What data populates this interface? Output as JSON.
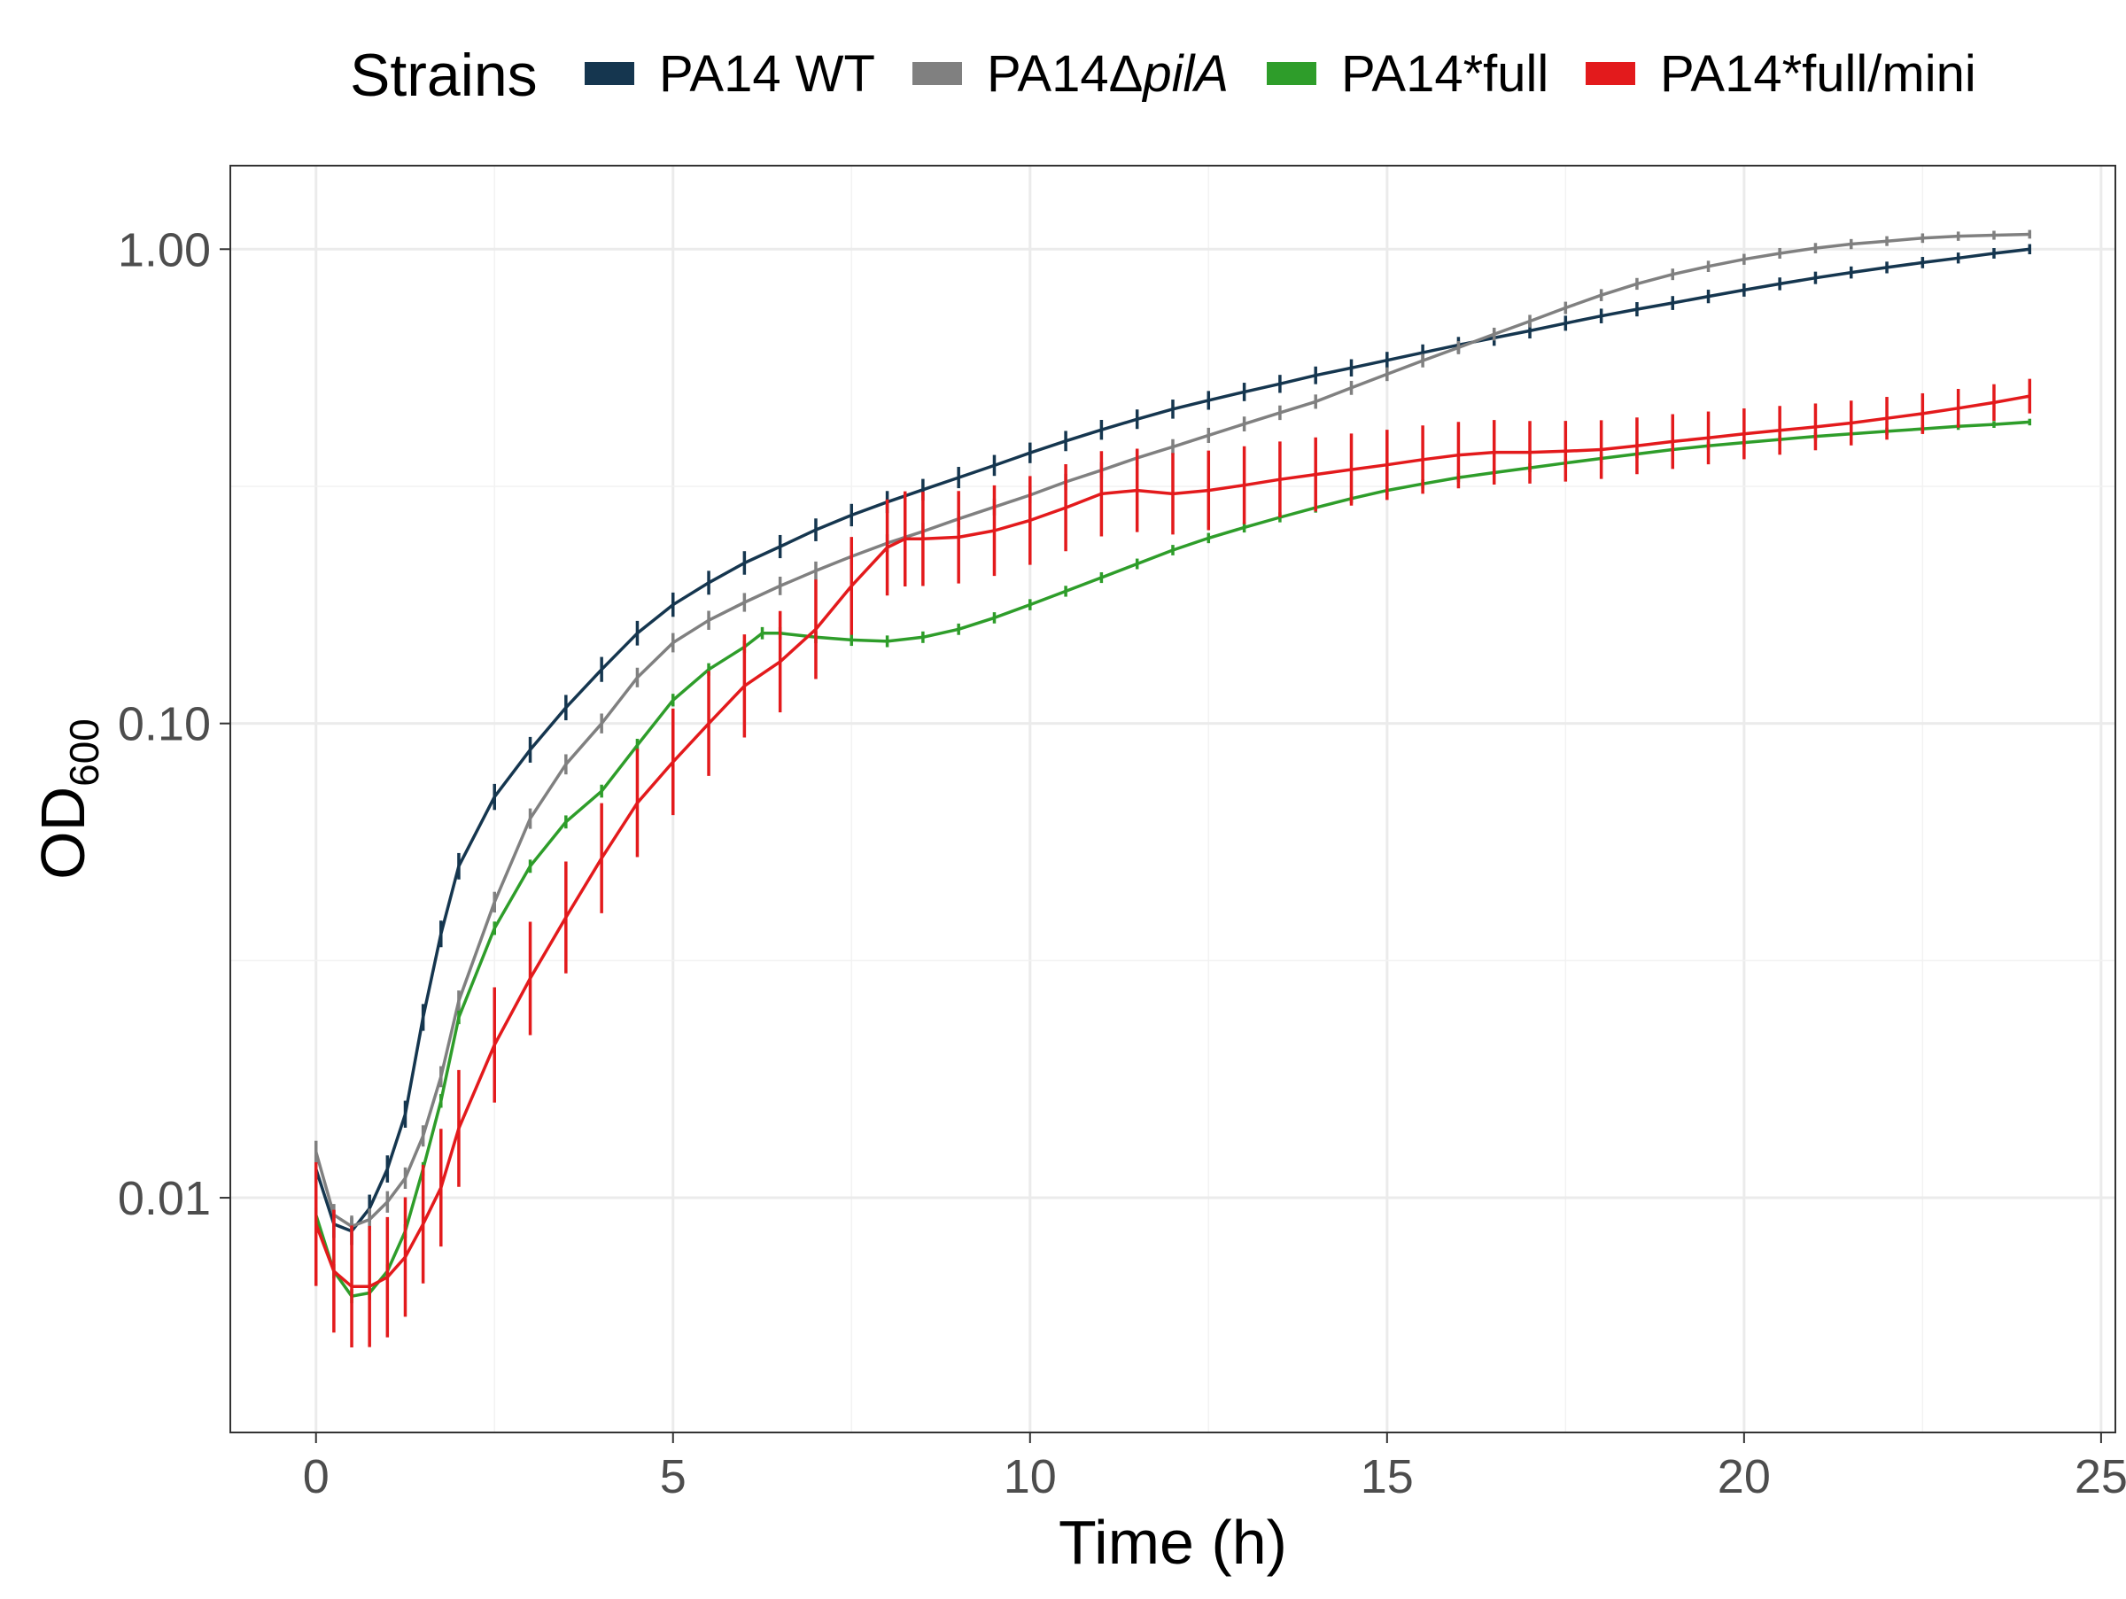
{
  "chart_data": {
    "type": "line",
    "xlabel": "Time (h)",
    "ylabel": {
      "main": "OD",
      "sub": "600"
    },
    "x_ticks": [
      0,
      5,
      10,
      15,
      20,
      25
    ],
    "y_ticks": [
      {
        "value": 0.01,
        "label": "0.01"
      },
      {
        "value": 0.1,
        "label": "0.10"
      },
      {
        "value": 1.0,
        "label": "1.00"
      }
    ],
    "xlim": [
      -1.2,
      25.2
    ],
    "ylim": [
      0.0032,
      1.5
    ],
    "y_scale": "log",
    "grid": true,
    "legend": {
      "title": "Strains",
      "position": "top",
      "items": [
        {
          "prefix": "PA14 WT",
          "italic": "",
          "color": "#15364f"
        },
        {
          "prefix": "PA14Δ",
          "italic": "pilA",
          "color": "#808080"
        },
        {
          "prefix": "PA14*full",
          "italic": "",
          "color": "#2e9d2a"
        },
        {
          "prefix": "PA14*full/mini",
          "italic": "",
          "color": "#e31a1c"
        }
      ]
    },
    "series": [
      {
        "name": "PA14 WT",
        "color": "#15364f",
        "points": [
          [
            0,
            0.0115
          ],
          [
            0.25,
            0.0088
          ],
          [
            0.5,
            0.0085
          ],
          [
            0.75,
            0.0095
          ],
          [
            1,
            0.0115
          ],
          [
            1.25,
            0.015
          ],
          [
            1.5,
            0.024
          ],
          [
            1.75,
            0.036
          ],
          [
            2,
            0.05
          ],
          [
            2.5,
            0.07
          ],
          [
            3,
            0.088
          ],
          [
            3.5,
            0.108
          ],
          [
            4,
            0.13
          ],
          [
            4.5,
            0.155
          ],
          [
            5,
            0.178
          ],
          [
            5.5,
            0.198
          ],
          [
            6,
            0.218
          ],
          [
            6.5,
            0.236
          ],
          [
            7,
            0.256
          ],
          [
            7.5,
            0.275
          ],
          [
            8,
            0.293
          ],
          [
            8.5,
            0.311
          ],
          [
            9,
            0.33
          ],
          [
            9.5,
            0.35
          ],
          [
            10,
            0.372
          ],
          [
            10.5,
            0.394
          ],
          [
            11,
            0.416
          ],
          [
            11.5,
            0.438
          ],
          [
            12,
            0.46
          ],
          [
            12.5,
            0.48
          ],
          [
            13,
            0.5
          ],
          [
            13.5,
            0.52
          ],
          [
            14,
            0.542
          ],
          [
            14.5,
            0.562
          ],
          [
            15,
            0.583
          ],
          [
            15.5,
            0.605
          ],
          [
            16,
            0.628
          ],
          [
            16.5,
            0.65
          ],
          [
            17,
            0.673
          ],
          [
            17.5,
            0.698
          ],
          [
            18,
            0.723
          ],
          [
            18.5,
            0.747
          ],
          [
            19,
            0.77
          ],
          [
            19.5,
            0.795
          ],
          [
            20,
            0.82
          ],
          [
            20.5,
            0.845
          ],
          [
            21,
            0.87
          ],
          [
            21.5,
            0.893
          ],
          [
            22,
            0.915
          ],
          [
            22.5,
            0.937
          ],
          [
            23,
            0.958
          ],
          [
            23.5,
            0.98
          ],
          [
            24,
            1.0
          ]
        ],
        "err": 0.06
      },
      {
        "name": "PA14ΔpilA",
        "color": "#808080",
        "points": [
          [
            0,
            0.0125
          ],
          [
            0.25,
            0.0092
          ],
          [
            0.5,
            0.0087
          ],
          [
            0.75,
            0.009
          ],
          [
            1,
            0.0098
          ],
          [
            1.25,
            0.011
          ],
          [
            1.5,
            0.0135
          ],
          [
            1.75,
            0.018
          ],
          [
            2,
            0.026
          ],
          [
            2.5,
            0.042
          ],
          [
            3,
            0.063
          ],
          [
            3.5,
            0.082
          ],
          [
            4,
            0.1
          ],
          [
            4.5,
            0.125
          ],
          [
            5,
            0.148
          ],
          [
            5.5,
            0.165
          ],
          [
            6,
            0.18
          ],
          [
            6.5,
            0.195
          ],
          [
            7,
            0.21
          ],
          [
            7.5,
            0.225
          ],
          [
            8,
            0.24
          ],
          [
            8.5,
            0.254
          ],
          [
            9,
            0.27
          ],
          [
            9.5,
            0.286
          ],
          [
            10,
            0.303
          ],
          [
            10.5,
            0.323
          ],
          [
            11,
            0.342
          ],
          [
            11.5,
            0.363
          ],
          [
            12,
            0.383
          ],
          [
            12.5,
            0.405
          ],
          [
            13,
            0.428
          ],
          [
            13.5,
            0.452
          ],
          [
            14,
            0.477
          ],
          [
            14.5,
            0.51
          ],
          [
            15,
            0.545
          ],
          [
            15.5,
            0.582
          ],
          [
            16,
            0.62
          ],
          [
            16.5,
            0.662
          ],
          [
            17,
            0.705
          ],
          [
            17.5,
            0.752
          ],
          [
            18,
            0.8
          ],
          [
            18.5,
            0.845
          ],
          [
            19,
            0.885
          ],
          [
            19.5,
            0.92
          ],
          [
            20,
            0.952
          ],
          [
            20.5,
            0.98
          ],
          [
            21,
            1.005
          ],
          [
            21.5,
            1.025
          ],
          [
            22,
            1.04
          ],
          [
            22.5,
            1.055
          ],
          [
            23,
            1.065
          ],
          [
            23.5,
            1.07
          ],
          [
            24,
            1.075
          ]
        ],
        "err": 0.045
      },
      {
        "name": "PA14*full",
        "color": "#2e9d2a",
        "points": [
          [
            0,
            0.0092
          ],
          [
            0.25,
            0.007
          ],
          [
            0.5,
            0.0062
          ],
          [
            0.75,
            0.0063
          ],
          [
            1,
            0.007
          ],
          [
            1.25,
            0.0085
          ],
          [
            1.5,
            0.0115
          ],
          [
            1.75,
            0.016
          ],
          [
            2,
            0.024
          ],
          [
            2.5,
            0.037
          ],
          [
            3,
            0.05
          ],
          [
            3.5,
            0.062
          ],
          [
            4,
            0.072
          ],
          [
            4.5,
            0.09
          ],
          [
            5,
            0.112
          ],
          [
            5.5,
            0.13
          ],
          [
            6,
            0.145
          ],
          [
            6.25,
            0.155
          ],
          [
            6.5,
            0.155
          ],
          [
            7,
            0.152
          ],
          [
            7.5,
            0.15
          ],
          [
            8,
            0.149
          ],
          [
            8.5,
            0.152
          ],
          [
            9,
            0.158
          ],
          [
            9.5,
            0.167
          ],
          [
            10,
            0.178
          ],
          [
            10.5,
            0.19
          ],
          [
            11,
            0.203
          ],
          [
            11.5,
            0.217
          ],
          [
            12,
            0.232
          ],
          [
            12.5,
            0.246
          ],
          [
            13,
            0.259
          ],
          [
            13.5,
            0.272
          ],
          [
            14,
            0.285
          ],
          [
            14.5,
            0.298
          ],
          [
            15,
            0.31
          ],
          [
            15.5,
            0.32
          ],
          [
            16,
            0.33
          ],
          [
            16.5,
            0.338
          ],
          [
            17,
            0.346
          ],
          [
            17.5,
            0.354
          ],
          [
            18,
            0.362
          ],
          [
            18.5,
            0.37
          ],
          [
            19,
            0.378
          ],
          [
            19.5,
            0.385
          ],
          [
            20,
            0.391
          ],
          [
            20.5,
            0.397
          ],
          [
            21,
            0.403
          ],
          [
            21.5,
            0.408
          ],
          [
            22,
            0.413
          ],
          [
            22.5,
            0.418
          ],
          [
            23,
            0.423
          ],
          [
            23.5,
            0.427
          ],
          [
            24,
            0.432
          ]
        ],
        "err": 0.025
      },
      {
        "name": "PA14*full/mini",
        "color": "#e31a1c",
        "points": [
          [
            0,
            0.0088
          ],
          [
            0.25,
            0.007
          ],
          [
            0.5,
            0.0065
          ],
          [
            0.75,
            0.0065
          ],
          [
            1,
            0.0068
          ],
          [
            1.25,
            0.0075
          ],
          [
            1.5,
            0.0088
          ],
          [
            1.75,
            0.0105
          ],
          [
            2,
            0.014
          ],
          [
            2.5,
            0.021
          ],
          [
            3,
            0.029
          ],
          [
            3.5,
            0.039
          ],
          [
            4,
            0.052
          ],
          [
            4.5,
            0.068
          ],
          [
            5,
            0.083
          ],
          [
            5.5,
            0.1
          ],
          [
            6,
            0.12
          ],
          [
            6.5,
            0.135
          ],
          [
            7,
            0.158
          ],
          [
            7.5,
            0.195
          ],
          [
            8,
            0.235
          ],
          [
            8.25,
            0.245
          ],
          [
            8.5,
            0.245
          ],
          [
            9,
            0.247
          ],
          [
            9.5,
            0.255
          ],
          [
            10,
            0.268
          ],
          [
            10.5,
            0.285
          ],
          [
            11,
            0.305
          ],
          [
            11.5,
            0.31
          ],
          [
            12,
            0.305
          ],
          [
            12.5,
            0.31
          ],
          [
            13,
            0.318
          ],
          [
            13.5,
            0.327
          ],
          [
            14,
            0.335
          ],
          [
            14.5,
            0.343
          ],
          [
            15,
            0.351
          ],
          [
            15.5,
            0.36
          ],
          [
            16,
            0.368
          ],
          [
            16.5,
            0.373
          ],
          [
            17,
            0.373
          ],
          [
            17.5,
            0.375
          ],
          [
            18,
            0.378
          ],
          [
            18.5,
            0.385
          ],
          [
            19,
            0.393
          ],
          [
            19.5,
            0.4
          ],
          [
            20,
            0.408
          ],
          [
            20.5,
            0.415
          ],
          [
            21,
            0.422
          ],
          [
            21.5,
            0.43
          ],
          [
            22,
            0.44
          ],
          [
            22.5,
            0.45
          ],
          [
            23,
            0.462
          ],
          [
            23.5,
            0.475
          ],
          [
            24,
            0.49
          ]
        ],
        "err": 0.35
      }
    ]
  }
}
